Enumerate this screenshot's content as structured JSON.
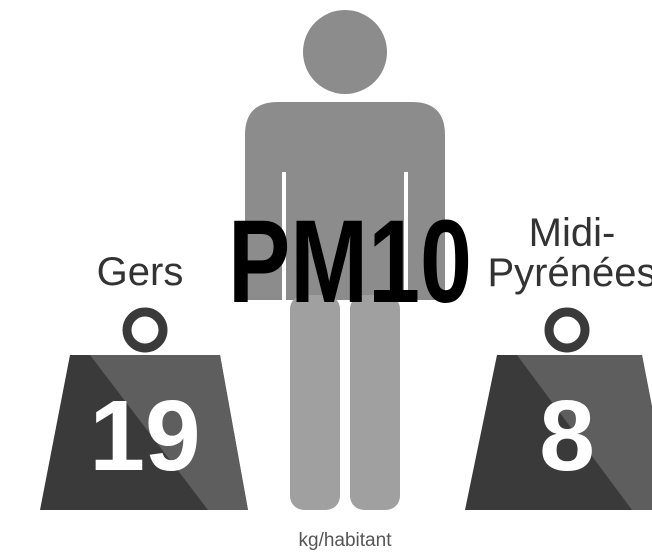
{
  "title": "PM10",
  "unit": "kg/habitant",
  "weights": [
    {
      "label_lines": [
        "Gers"
      ],
      "value": "19"
    },
    {
      "label_lines": [
        "Midi-",
        "Pyrénées"
      ],
      "value": "8"
    }
  ]
}
